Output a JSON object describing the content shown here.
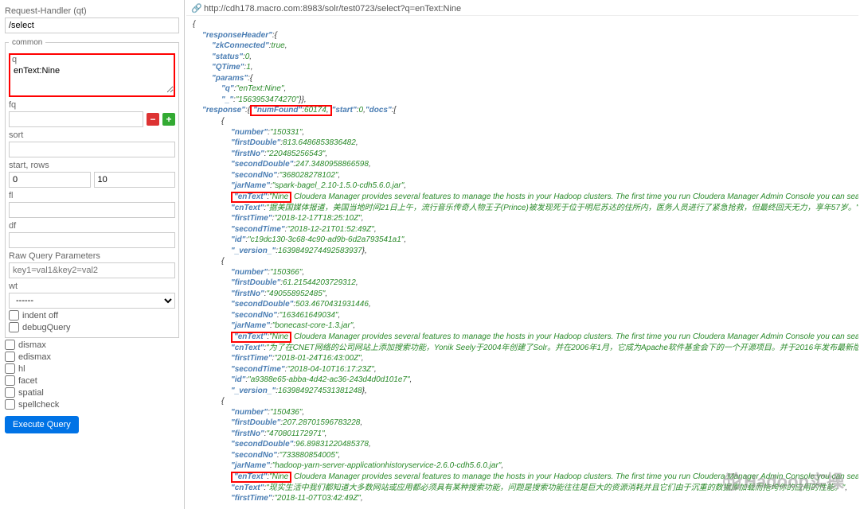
{
  "left": {
    "rh_label": "Request-Handler (qt)",
    "rh_value": "/select",
    "common": "common",
    "q_label": "q",
    "q_value": "enText:Nine",
    "fq_label": "fq",
    "sort_label": "sort",
    "start_label": "start, rows",
    "start_value": "0",
    "rows_value": "10",
    "fl_label": "fl",
    "df_label": "df",
    "raw_label": "Raw Query Parameters",
    "raw_placeholder": "key1=val1&key2=val2",
    "wt_label": "wt",
    "wt_value": "------",
    "indent": "indent off",
    "debug": "debugQuery",
    "dismax": "dismax",
    "edismax": "edismax",
    "hl": "hl",
    "facet": "facet",
    "spatial": "spatial",
    "spellcheck": "spellcheck",
    "exec": "Execute Query"
  },
  "url": "http://cdh178.macro.com:8983/solr/test0723/select?q=enText:Nine",
  "resp": {
    "zkConnected": "true",
    "status": "0",
    "QTime": "1",
    "q": "enText:Nine",
    "under": "1563953474270",
    "numFound": "60174",
    "start": "0",
    "doc1": {
      "number": "150331",
      "firstDouble": "813.6486853836482",
      "firstNo": "220485256543",
      "secondDouble": "247.3480958866598",
      "secondNo": "368028278102",
      "jarName": "spark-bagel_2.10-1.5.0-cdh5.6.0.jar",
      "enTextPrefix": "Nine",
      "enTextRest": "Cloudera Manager provides several features to manage the hosts in your Hadoop clusters. The first time you run Cloudera Manager Admin Console you can search for hosts to add to the cluster and",
      "cnText": "据美国媒体报道，美国当地时间21日上午，流行音乐传奇人物王子(Prince)被发现死于位于明尼苏达的住所内，医务人员进行了紧急抢救，但最终回天无力，享年57岁。",
      "firstTime": "2018-12-17T18:25:10Z",
      "secondTime": "2018-12-21T01:52:49Z",
      "id": "c19dc130-3c68-4c90-ad9b-6d2a793541a1",
      "version": "1639849274492583937"
    },
    "doc2": {
      "number": "150366",
      "firstDouble": "61.21544203729312",
      "firstNo": "490558952485",
      "secondDouble": "503.4670431931446",
      "secondNo": "163461649034",
      "jarName": "bonecast-core-1.3.jar",
      "enTextPrefix": "Nine",
      "enTextRest": "Cloudera Manager provides several features to manage the hosts in your Hadoop clusters. The first time you run Cloudera Manager Admin Console you can search for hosts to add to the cluster and",
      "cnText": "为了在CNET网络的公司网站上添加搜索功能，Yonik Seely于2004年创建了Solr。并在2006年1月，它成为Apache软件基金会下的一个开源项目。并于2016年发布最新版本Solr 6.0，支持并行SQL查询的执行。",
      "firstTime": "2018-01-24T16:43:00Z",
      "secondTime": "2018-04-10T16:17:23Z",
      "id": "a9388e65-abba-4d42-ac36-243d4d0d101e7",
      "version": "1639849274531381248"
    },
    "doc3": {
      "number": "150436",
      "firstDouble": "207.28701596783228",
      "firstNo": "470801172971",
      "secondDouble": "96.89831220485378",
      "secondNo": "733880854005",
      "jarName": "hadoop-yarn-server-applicationhistoryservice-2.6.0-cdh5.6.0.jar",
      "enTextPrefix": "Nine",
      "enTextRest": "Cloudera Manager provides several features to manage the hosts in your Hadoop clusters. The first time you run Cloudera Manager Admin Console you can search for hosts to add to the cluster and",
      "cnText": "现实生活中我们都知道大多数网站或应用都必须具有某种搜索功能，问题是搜索功能往往是巨大的资源消耗并且它们由于沉重的数据库加载而拖垮你的应用的性能。",
      "firstTime": "2018-11-07T03:42:49Z"
    }
  }
}
